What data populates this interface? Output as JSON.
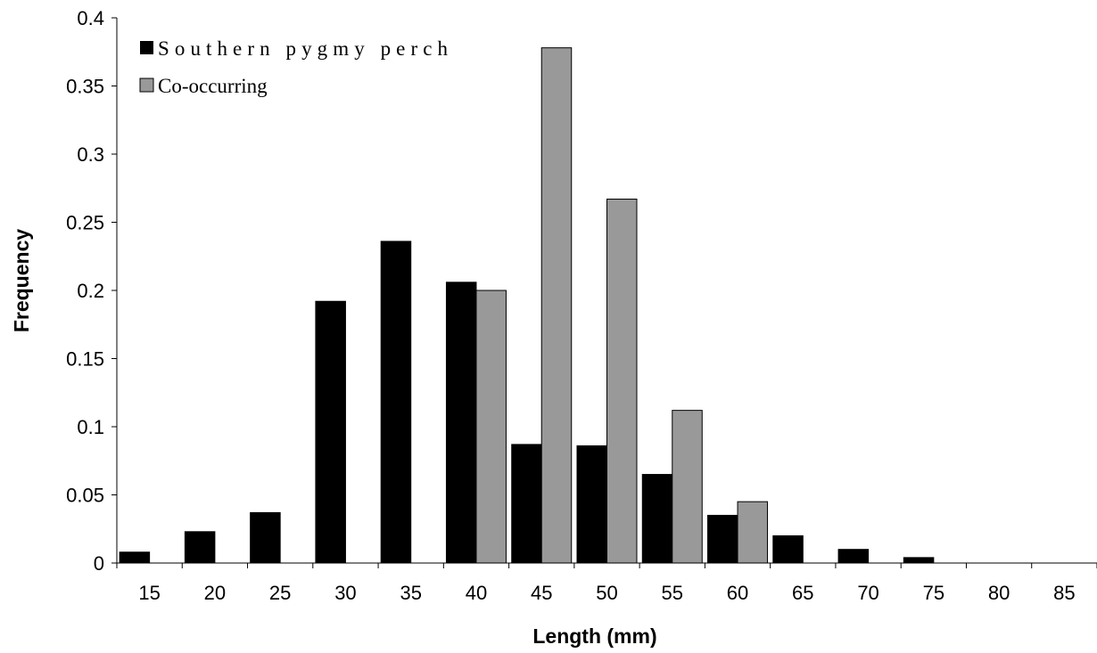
{
  "chart_data": {
    "type": "bar",
    "xlabel": "Length (mm)",
    "ylabel": "Frequency",
    "categories": [
      "15",
      "20",
      "25",
      "30",
      "35",
      "40",
      "45",
      "50",
      "55",
      "60",
      "65",
      "70",
      "75",
      "80",
      "85"
    ],
    "series": [
      {
        "name": "Southern pygmy perch",
        "color": "#000000",
        "values": [
          0.008,
          0.023,
          0.037,
          0.192,
          0.236,
          0.206,
          0.087,
          0.086,
          0.065,
          0.035,
          0.02,
          0.01,
          0.004,
          0,
          0
        ]
      },
      {
        "name": "Co-occurring",
        "color": "#999999",
        "values": [
          0,
          0,
          0,
          0,
          0,
          0.2,
          0.378,
          0.267,
          0.112,
          0.045,
          0,
          0,
          0,
          0,
          0
        ]
      }
    ],
    "ylim": [
      0,
      0.4
    ],
    "yticks": [
      "0",
      "0.05",
      "0.1",
      "0.15",
      "0.2",
      "0.25",
      "0.3",
      "0.35",
      "0.4"
    ],
    "legend_position": "top-left",
    "grid": false
  }
}
